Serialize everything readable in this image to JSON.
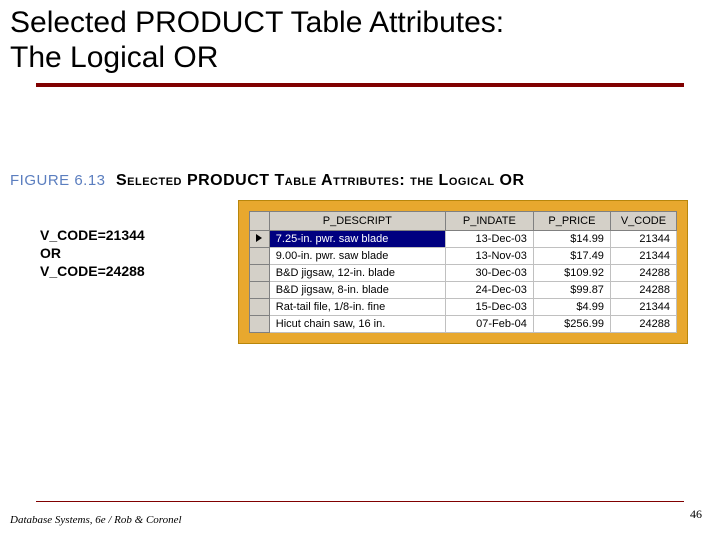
{
  "title_line1": "Selected PRODUCT Table Attributes:",
  "title_line2": "The Logical OR",
  "figure": {
    "label": "FIGURE 6.13",
    "caption": "Selected PRODUCT Table Attributes: the Logical OR"
  },
  "whereClause": {
    "line1": "V_CODE=21344",
    "line2": "OR",
    "line3": "V_CODE=24288"
  },
  "table": {
    "columns": [
      "P_DESCRIPT",
      "P_INDATE",
      "P_PRICE",
      "V_CODE"
    ],
    "rows": [
      {
        "descript": "7.25-in. pwr. saw blade",
        "indate": "13-Dec-03",
        "price": "$14.99",
        "vcode": "21344",
        "selected": true
      },
      {
        "descript": "9.00-in. pwr. saw blade",
        "indate": "13-Nov-03",
        "price": "$17.49",
        "vcode": "21344",
        "selected": false
      },
      {
        "descript": "B&D jigsaw, 12-in. blade",
        "indate": "30-Dec-03",
        "price": "$109.92",
        "vcode": "24288",
        "selected": false
      },
      {
        "descript": "B&D jigsaw, 8-in. blade",
        "indate": "24-Dec-03",
        "price": "$99.87",
        "vcode": "24288",
        "selected": false
      },
      {
        "descript": "Rat-tail file, 1/8-in. fine",
        "indate": "15-Dec-03",
        "price": "$4.99",
        "vcode": "21344",
        "selected": false
      },
      {
        "descript": "Hicut chain saw, 16 in.",
        "indate": "07-Feb-04",
        "price": "$256.99",
        "vcode": "24288",
        "selected": false
      }
    ]
  },
  "footer": "Database Systems, 6e / Rob & Coronel",
  "pageNumber": "46",
  "colors": {
    "accent": "#800000",
    "panel": "#e8a82e",
    "figureLabel": "#5b7ebf",
    "selectedRow": "#000080",
    "headerBg": "#d4d0c8"
  }
}
